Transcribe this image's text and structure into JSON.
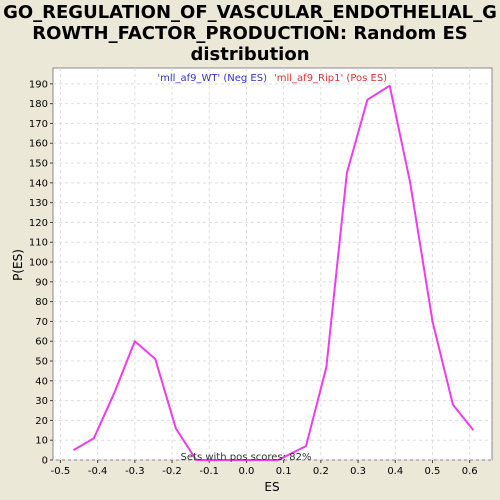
{
  "chart_data": {
    "type": "line",
    "title_lines": [
      "GO_REGULATION_OF_VASCULAR_ENDOTHELIAL_G",
      "ROWTH_FACTOR_PRODUCTION: Random ES",
      "distribution"
    ],
    "xlabel": "ES",
    "ylabel": "P(ES)",
    "xlim": [
      -0.52,
      0.66
    ],
    "ylim": [
      0,
      198
    ],
    "x_ticks": [
      -0.5,
      -0.4,
      -0.3,
      -0.2,
      -0.1,
      0.0,
      0.1,
      0.2,
      0.3,
      0.4,
      0.5,
      0.6
    ],
    "x_tick_labels": [
      "-0.5",
      "-0.4",
      "-0.3",
      "-0.2",
      "-0.1",
      "0.0",
      "0.1",
      "0.2",
      "0.3",
      "0.4",
      "0.5",
      "0.6"
    ],
    "y_ticks": [
      0,
      10,
      20,
      30,
      40,
      50,
      60,
      70,
      80,
      90,
      100,
      110,
      120,
      130,
      140,
      150,
      160,
      170,
      180,
      190
    ],
    "grid": true,
    "legend": {
      "placement": "top-center",
      "entries": [
        {
          "label": "'mll_af9_WT' (Neg ES)",
          "color": "#3333cc"
        },
        {
          "label": "'mll_af9_Rip1' (Pos ES)",
          "color": "#e03030"
        }
      ]
    },
    "series": [
      {
        "color": "#ee3cee",
        "x": [
          -0.465,
          -0.41,
          -0.355,
          -0.3,
          -0.245,
          -0.19,
          -0.135,
          -0.08,
          -0.025,
          0.03,
          0.085,
          0.16,
          0.215,
          0.27,
          0.325,
          0.385,
          0.44,
          0.5,
          0.555,
          0.61
        ],
        "y": [
          5,
          11,
          34,
          60,
          51,
          16,
          0,
          0,
          0,
          0,
          0,
          7,
          47,
          145,
          182,
          189,
          140,
          70,
          28,
          15
        ]
      }
    ],
    "annotation": "Sets with pos scores: 82%"
  }
}
